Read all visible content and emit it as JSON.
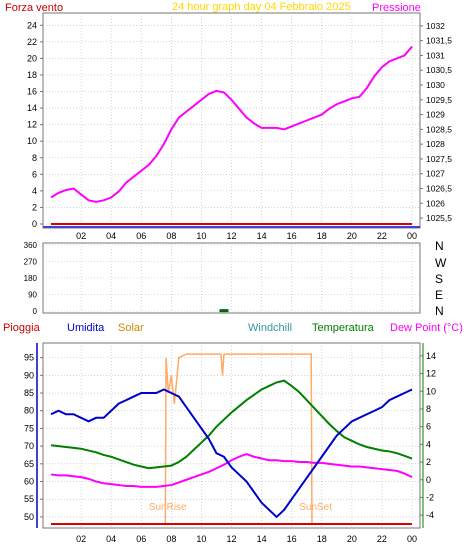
{
  "colors": {
    "plot_bg": "#ffffff",
    "outer_bg": "#ffffff",
    "grid": "#b9b9b9",
    "axis": "#777777",
    "tick_text": "#000000",
    "wind_axis_color": "#cc0000",
    "pressure": "#ff00ff",
    "title": "#ffd700",
    "direction_text": "#000000",
    "rain": "#cc0000",
    "humidity": "#0000cc",
    "solar": "#cc8800",
    "solar_line": "#ffaa66",
    "windchill": "#339999",
    "temperature": "#008000",
    "dewpoint": "#ff00ff",
    "baseline_red": "#dd0000",
    "baseline_blue": "#4a3bdd"
  },
  "top": {
    "title": "24 hour graph day   04 Febbraio 2025",
    "left_label": "Forza vento",
    "right_label": "Pressione"
  },
  "direction_labels": [
    "N",
    "W",
    "S",
    "E",
    "N"
  ],
  "bottom": {
    "label_rain": "Pioggia",
    "label_humidity": "Umidita",
    "label_solar": "Solar",
    "label_windchill": "Windchill",
    "label_temperature": "Temperatura",
    "label_dewpoint": "Dew Point (°C)",
    "sunrise": "SunRise",
    "sunset": "SunSet"
  },
  "chart_data": [
    {
      "type": "line",
      "name": "wind-pressure",
      "x_ticks": [
        "02",
        "04",
        "06",
        "08",
        "10",
        "12",
        "14",
        "16",
        "18",
        "20",
        "22",
        "00"
      ],
      "y_left_ticks": [
        "0",
        "2",
        "4",
        "6",
        "8",
        "10",
        "12",
        "14",
        "16",
        "18",
        "20",
        "22",
        "24"
      ],
      "y_left_range": [
        0,
        25
      ],
      "y_right_ticks": [
        "1025,5",
        "1026",
        "1026,5",
        "1027",
        "1027,5",
        "1028",
        "1028,5",
        "1029",
        "1029,5",
        "1030",
        "1030,5",
        "1031",
        "1031,5",
        "1032"
      ],
      "y_right_range": [
        1025.3,
        1032.3
      ],
      "series": [
        {
          "name": "Pressione",
          "axis": "right",
          "x": [
            0,
            0.5,
            1,
            1.5,
            2,
            2.5,
            3,
            3.5,
            4,
            4.5,
            5,
            5.5,
            6,
            6.5,
            7,
            7.5,
            8,
            8.5,
            9,
            9.5,
            10,
            10.5,
            11,
            11.5,
            12,
            12.5,
            13,
            13.5,
            14,
            14.5,
            15,
            15.5,
            16,
            16.5,
            17,
            17.5,
            18,
            18.5,
            19,
            19.5,
            20,
            20.5,
            21,
            21.5,
            22,
            22.5,
            23,
            23.5,
            24
          ],
          "y": [
            1026.2,
            1026.35,
            1026.45,
            1026.5,
            1026.3,
            1026.1,
            1026.05,
            1026.1,
            1026.2,
            1026.4,
            1026.7,
            1026.9,
            1027.1,
            1027.3,
            1027.6,
            1028.0,
            1028.5,
            1028.9,
            1029.1,
            1029.3,
            1029.5,
            1029.7,
            1029.8,
            1029.75,
            1029.5,
            1029.2,
            1028.9,
            1028.7,
            1028.55,
            1028.55,
            1028.55,
            1028.5,
            1028.6,
            1028.7,
            1028.8,
            1028.9,
            1029.0,
            1029.2,
            1029.35,
            1029.45,
            1029.55,
            1029.6,
            1029.9,
            1030.3,
            1030.6,
            1030.8,
            1030.9,
            1031.0,
            1031.3
          ]
        },
        {
          "name": "Forza vento",
          "axis": "left",
          "x": [
            0,
            24
          ],
          "y": [
            0,
            0
          ]
        }
      ]
    },
    {
      "type": "scatter",
      "name": "wind-direction",
      "y_ticks": [
        "360",
        "270",
        "180",
        "90",
        "0"
      ],
      "y_range": [
        0,
        360
      ],
      "x": [
        11.3,
        11.5,
        11.7
      ],
      "y": [
        2,
        2,
        2
      ]
    },
    {
      "type": "line",
      "name": "weather",
      "x_ticks": [
        "02",
        "04",
        "06",
        "08",
        "10",
        "12",
        "14",
        "16",
        "18",
        "20",
        "22",
        "00"
      ],
      "y_left_ticks": [
        "50",
        "55",
        "60",
        "65",
        "70",
        "75",
        "80",
        "85",
        "90",
        "95"
      ],
      "y_left_range": [
        48,
        98
      ],
      "y_right_ticks": [
        "14",
        "12",
        "10",
        "8",
        "6",
        "4",
        "2",
        "0",
        "-2",
        "-4"
      ],
      "y_right_range": [
        -5,
        15
      ],
      "sunrise_hour": 7.7,
      "sunset_hour": 17.3,
      "series": [
        {
          "name": "Umidita",
          "axis": "left",
          "x": [
            0,
            0.5,
            1,
            1.5,
            2,
            2.5,
            3,
            3.5,
            4,
            4.5,
            5,
            5.5,
            6,
            6.5,
            7,
            7.5,
            8,
            8.5,
            9,
            9.5,
            10,
            10.5,
            11,
            11.5,
            12,
            12.5,
            13,
            13.5,
            14,
            14.5,
            15,
            15.5,
            16,
            16.5,
            17,
            17.5,
            18,
            18.5,
            19,
            19.5,
            20,
            20.5,
            21,
            21.5,
            22,
            22.5,
            23,
            23.5,
            24
          ],
          "y": [
            79,
            80,
            79,
            79,
            78,
            77,
            78,
            78,
            80,
            82,
            83,
            84,
            85,
            85,
            85,
            86,
            85,
            84,
            81,
            78,
            75,
            72,
            68,
            67,
            64,
            62,
            60,
            57,
            54,
            52,
            50,
            52,
            55,
            58,
            61,
            64,
            67,
            70,
            73,
            75,
            77,
            78,
            79,
            80,
            81,
            83,
            84,
            85,
            86
          ]
        },
        {
          "name": "Temperatura",
          "axis": "right",
          "x": [
            0,
            0.5,
            1,
            1.5,
            2,
            2.5,
            3,
            3.5,
            4,
            4.5,
            5,
            5.5,
            6,
            6.5,
            7,
            7.5,
            8,
            8.5,
            9,
            9.5,
            10,
            10.5,
            11,
            11.5,
            12,
            12.5,
            13,
            13.5,
            14,
            14.5,
            15,
            15.5,
            16,
            16.5,
            17,
            17.5,
            18,
            18.5,
            19,
            19.5,
            20,
            20.5,
            21,
            21.5,
            22,
            22.5,
            23,
            23.5,
            24
          ],
          "y": [
            3.9,
            3.8,
            3.7,
            3.6,
            3.5,
            3.3,
            3.1,
            2.8,
            2.6,
            2.3,
            2.0,
            1.7,
            1.5,
            1.3,
            1.4,
            1.5,
            1.6,
            2.0,
            2.6,
            3.4,
            4.2,
            5.0,
            6.0,
            6.8,
            7.6,
            8.3,
            9.0,
            9.6,
            10.2,
            10.6,
            11.0,
            11.2,
            10.6,
            9.9,
            9.0,
            8.1,
            7.2,
            6.3,
            5.5,
            4.8,
            4.4,
            4.0,
            3.7,
            3.5,
            3.3,
            3.2,
            3.0,
            2.7,
            2.4
          ]
        },
        {
          "name": "Dew Point (°C)",
          "axis": "right",
          "x": [
            0,
            0.5,
            1,
            1.5,
            2,
            2.5,
            3,
            3.5,
            4,
            4.5,
            5,
            5.5,
            6,
            6.5,
            7,
            7.5,
            8,
            8.5,
            9,
            9.5,
            10,
            10.5,
            11,
            11.5,
            12,
            12.5,
            13,
            13.5,
            14,
            14.5,
            15,
            15.5,
            16,
            16.5,
            17,
            17.5,
            18,
            18.5,
            19,
            19.5,
            20,
            20.5,
            21,
            21.5,
            22,
            22.5,
            23,
            23.5,
            24
          ],
          "y": [
            0.6,
            0.5,
            0.5,
            0.4,
            0.3,
            0.1,
            -0.2,
            -0.4,
            -0.5,
            -0.6,
            -0.7,
            -0.7,
            -0.8,
            -0.8,
            -0.8,
            -0.7,
            -0.6,
            -0.3,
            0.0,
            0.3,
            0.6,
            0.9,
            1.3,
            1.7,
            2.2,
            2.6,
            2.9,
            2.6,
            2.4,
            2.2,
            2.2,
            2.1,
            2.1,
            2.0,
            2.0,
            1.9,
            1.9,
            1.8,
            1.7,
            1.6,
            1.5,
            1.5,
            1.4,
            1.3,
            1.2,
            1.1,
            1.0,
            0.7,
            0.3
          ]
        },
        {
          "name": "Windchill",
          "axis": "right",
          "x": [
            0,
            24
          ],
          "y": [
            3.9,
            2.4
          ]
        },
        {
          "name": "Solar",
          "axis": "left",
          "x": [
            0,
            7.6,
            7.65,
            7.8,
            8.0,
            8.2,
            8.5,
            9.0,
            11.3,
            11.4,
            11.5,
            11.6,
            17.3,
            17.35,
            24
          ],
          "y": [
            48,
            48,
            95,
            85,
            90,
            82,
            95,
            96,
            96,
            90,
            96,
            96,
            96,
            48,
            48
          ]
        },
        {
          "name": "Pioggia",
          "axis": "left",
          "x": [
            0,
            24
          ],
          "y": [
            48,
            48
          ]
        }
      ]
    }
  ]
}
